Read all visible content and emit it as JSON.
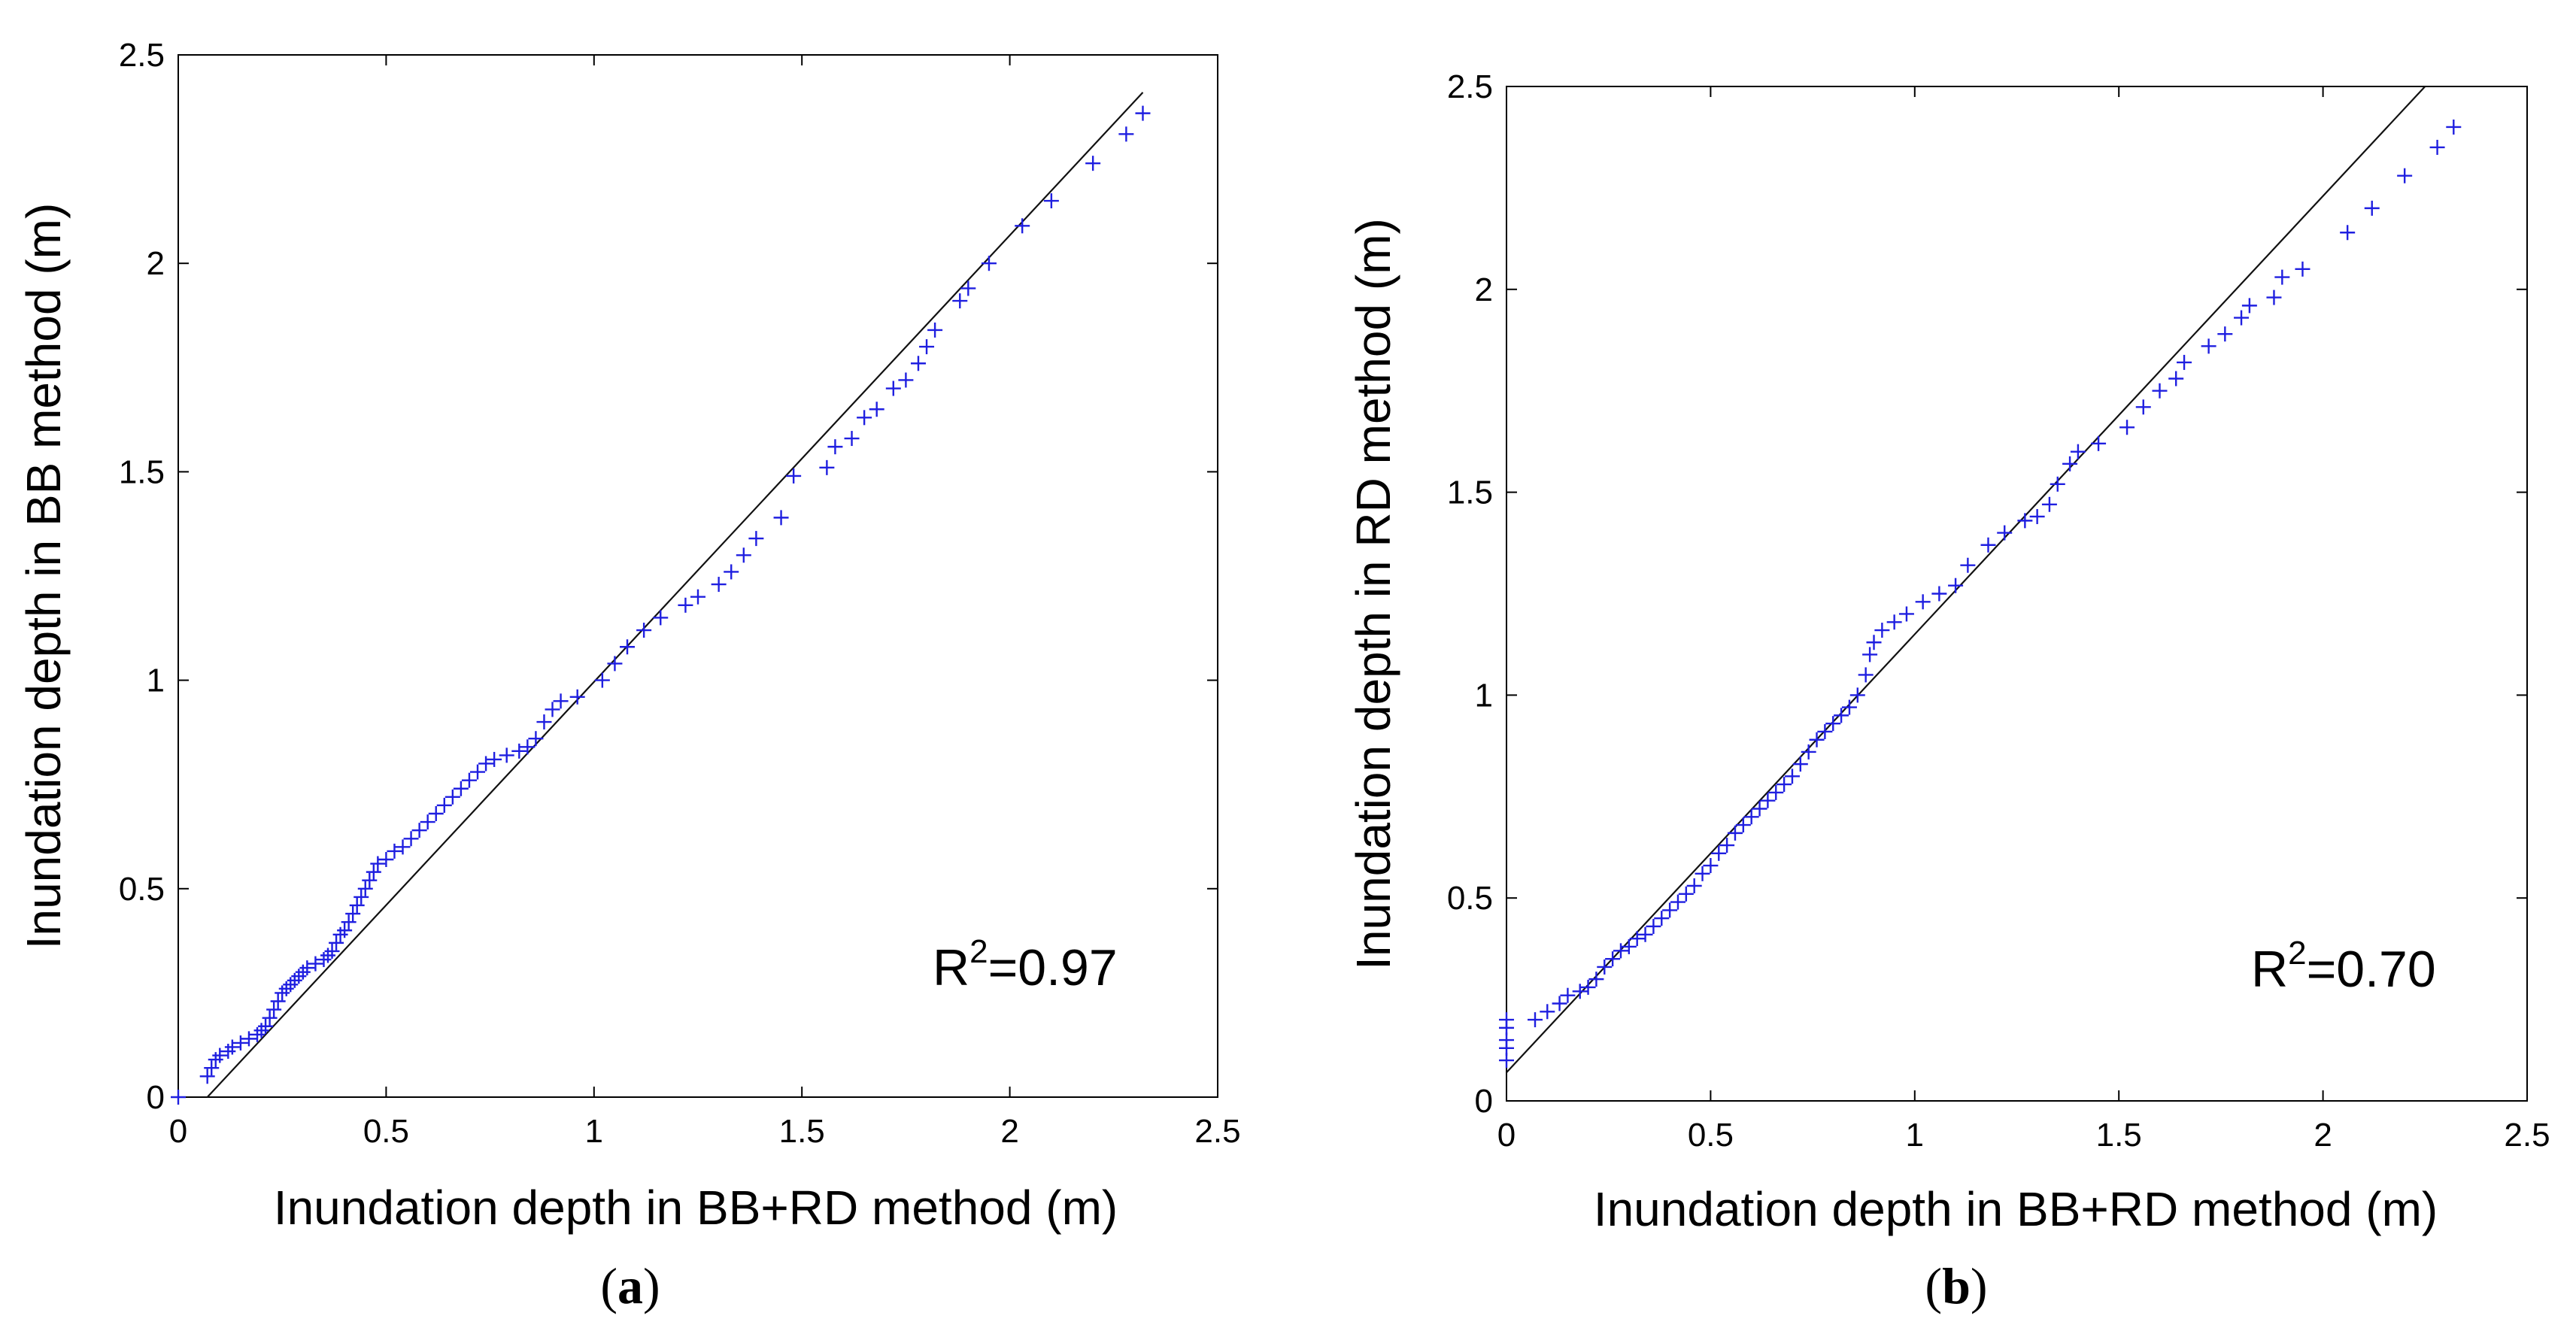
{
  "chart_data": [
    {
      "type": "scatter",
      "panel": "a",
      "caption": {
        "open": "(",
        "letter": "a",
        "close": ")"
      },
      "xlabel": "Inundation depth in BB+RD method (m)",
      "ylabel": "Inundation depth in BB method (m)",
      "xlim": [
        0,
        2.5
      ],
      "ylim": [
        0,
        2.5
      ],
      "xticks": [
        "0",
        "0.5",
        "1",
        "1.5",
        "2",
        "2.5"
      ],
      "yticks": [
        "0",
        "0.5",
        "1",
        "1.5",
        "2",
        "2.5"
      ],
      "annotation": {
        "prefix": "R",
        "sup": "2",
        "suffix": "=0.97"
      },
      "marker_color": "#1f1fe0",
      "fit_line": {
        "x": [
          0.07,
          2.32
        ],
        "y": [
          0.0,
          2.41
        ]
      },
      "points": [
        [
          0.0,
          0.0
        ],
        [
          0.07,
          0.05
        ],
        [
          0.08,
          0.07
        ],
        [
          0.09,
          0.09
        ],
        [
          0.1,
          0.1
        ],
        [
          0.12,
          0.11
        ],
        [
          0.13,
          0.12
        ],
        [
          0.15,
          0.13
        ],
        [
          0.17,
          0.14
        ],
        [
          0.19,
          0.15
        ],
        [
          0.2,
          0.16
        ],
        [
          0.21,
          0.17
        ],
        [
          0.22,
          0.19
        ],
        [
          0.23,
          0.21
        ],
        [
          0.24,
          0.23
        ],
        [
          0.25,
          0.25
        ],
        [
          0.26,
          0.26
        ],
        [
          0.27,
          0.27
        ],
        [
          0.28,
          0.28
        ],
        [
          0.29,
          0.29
        ],
        [
          0.3,
          0.3
        ],
        [
          0.31,
          0.31
        ],
        [
          0.33,
          0.32
        ],
        [
          0.35,
          0.33
        ],
        [
          0.36,
          0.34
        ],
        [
          0.37,
          0.35
        ],
        [
          0.38,
          0.37
        ],
        [
          0.39,
          0.39
        ],
        [
          0.4,
          0.4
        ],
        [
          0.41,
          0.42
        ],
        [
          0.42,
          0.44
        ],
        [
          0.43,
          0.46
        ],
        [
          0.44,
          0.48
        ],
        [
          0.45,
          0.5
        ],
        [
          0.46,
          0.52
        ],
        [
          0.47,
          0.54
        ],
        [
          0.48,
          0.56
        ],
        [
          0.5,
          0.57
        ],
        [
          0.52,
          0.59
        ],
        [
          0.54,
          0.6
        ],
        [
          0.56,
          0.62
        ],
        [
          0.58,
          0.64
        ],
        [
          0.6,
          0.66
        ],
        [
          0.62,
          0.68
        ],
        [
          0.64,
          0.7
        ],
        [
          0.66,
          0.72
        ],
        [
          0.68,
          0.74
        ],
        [
          0.7,
          0.76
        ],
        [
          0.72,
          0.78
        ],
        [
          0.74,
          0.8
        ],
        [
          0.76,
          0.81
        ],
        [
          0.79,
          0.82
        ],
        [
          0.82,
          0.83
        ],
        [
          0.84,
          0.84
        ],
        [
          0.86,
          0.86
        ],
        [
          0.88,
          0.9
        ],
        [
          0.9,
          0.93
        ],
        [
          0.92,
          0.95
        ],
        [
          0.96,
          0.96
        ],
        [
          1.02,
          1.0
        ],
        [
          1.05,
          1.04
        ],
        [
          1.08,
          1.08
        ],
        [
          1.12,
          1.12
        ],
        [
          1.16,
          1.15
        ],
        [
          1.22,
          1.18
        ],
        [
          1.25,
          1.2
        ],
        [
          1.3,
          1.23
        ],
        [
          1.33,
          1.26
        ],
        [
          1.36,
          1.3
        ],
        [
          1.39,
          1.34
        ],
        [
          1.45,
          1.39
        ],
        [
          1.48,
          1.49
        ],
        [
          1.56,
          1.51
        ],
        [
          1.58,
          1.56
        ],
        [
          1.62,
          1.58
        ],
        [
          1.65,
          1.63
        ],
        [
          1.68,
          1.65
        ],
        [
          1.72,
          1.7
        ],
        [
          1.75,
          1.72
        ],
        [
          1.78,
          1.76
        ],
        [
          1.8,
          1.8
        ],
        [
          1.82,
          1.84
        ],
        [
          1.88,
          1.91
        ],
        [
          1.9,
          1.94
        ],
        [
          1.95,
          2.0
        ],
        [
          2.03,
          2.09
        ],
        [
          2.1,
          2.15
        ],
        [
          2.2,
          2.24
        ],
        [
          2.28,
          2.31
        ],
        [
          2.32,
          2.36
        ]
      ]
    },
    {
      "type": "scatter",
      "panel": "b",
      "caption": {
        "open": "(",
        "letter": "b",
        "close": ")"
      },
      "xlabel": "Inundation depth in BB+RD method (m)",
      "ylabel": "Inundation depth in RD method (m)",
      "xlim": [
        0,
        2.5
      ],
      "ylim": [
        0,
        2.5
      ],
      "xticks": [
        "0",
        "0.5",
        "1",
        "1.5",
        "2",
        "2.5"
      ],
      "yticks": [
        "0",
        "0.5",
        "1",
        "1.5",
        "2",
        "2.5"
      ],
      "annotation": {
        "prefix": "R",
        "sup": "2",
        "suffix": "=0.70"
      },
      "marker_color": "#1f1fe0",
      "fit_line": {
        "x": [
          0.0,
          2.25
        ],
        "y": [
          0.07,
          2.5
        ]
      },
      "points": [
        [
          0.0,
          0.1
        ],
        [
          0.0,
          0.13
        ],
        [
          0.0,
          0.15
        ],
        [
          0.0,
          0.18
        ],
        [
          0.0,
          0.2
        ],
        [
          0.07,
          0.2
        ],
        [
          0.1,
          0.22
        ],
        [
          0.13,
          0.24
        ],
        [
          0.15,
          0.26
        ],
        [
          0.18,
          0.27
        ],
        [
          0.2,
          0.28
        ],
        [
          0.22,
          0.3
        ],
        [
          0.24,
          0.33
        ],
        [
          0.26,
          0.35
        ],
        [
          0.28,
          0.37
        ],
        [
          0.3,
          0.38
        ],
        [
          0.32,
          0.4
        ],
        [
          0.34,
          0.41
        ],
        [
          0.36,
          0.43
        ],
        [
          0.38,
          0.45
        ],
        [
          0.4,
          0.47
        ],
        [
          0.42,
          0.49
        ],
        [
          0.44,
          0.51
        ],
        [
          0.46,
          0.53
        ],
        [
          0.48,
          0.56
        ],
        [
          0.5,
          0.58
        ],
        [
          0.52,
          0.61
        ],
        [
          0.54,
          0.63
        ],
        [
          0.56,
          0.66
        ],
        [
          0.58,
          0.68
        ],
        [
          0.6,
          0.7
        ],
        [
          0.62,
          0.72
        ],
        [
          0.64,
          0.74
        ],
        [
          0.66,
          0.76
        ],
        [
          0.68,
          0.78
        ],
        [
          0.7,
          0.8
        ],
        [
          0.72,
          0.83
        ],
        [
          0.74,
          0.86
        ],
        [
          0.76,
          0.89
        ],
        [
          0.78,
          0.91
        ],
        [
          0.8,
          0.93
        ],
        [
          0.82,
          0.95
        ],
        [
          0.84,
          0.97
        ],
        [
          0.86,
          1.0
        ],
        [
          0.88,
          1.05
        ],
        [
          0.89,
          1.1
        ],
        [
          0.9,
          1.13
        ],
        [
          0.92,
          1.16
        ],
        [
          0.95,
          1.18
        ],
        [
          0.98,
          1.2
        ],
        [
          1.02,
          1.23
        ],
        [
          1.06,
          1.25
        ],
        [
          1.1,
          1.27
        ],
        [
          1.13,
          1.32
        ],
        [
          1.18,
          1.37
        ],
        [
          1.22,
          1.4
        ],
        [
          1.27,
          1.43
        ],
        [
          1.3,
          1.44
        ],
        [
          1.33,
          1.47
        ],
        [
          1.35,
          1.52
        ],
        [
          1.38,
          1.57
        ],
        [
          1.4,
          1.6
        ],
        [
          1.45,
          1.62
        ],
        [
          1.52,
          1.66
        ],
        [
          1.56,
          1.71
        ],
        [
          1.6,
          1.75
        ],
        [
          1.64,
          1.78
        ],
        [
          1.66,
          1.82
        ],
        [
          1.72,
          1.86
        ],
        [
          1.76,
          1.89
        ],
        [
          1.8,
          1.93
        ],
        [
          1.82,
          1.96
        ],
        [
          1.88,
          1.98
        ],
        [
          1.9,
          2.03
        ],
        [
          1.95,
          2.05
        ],
        [
          2.06,
          2.14
        ],
        [
          2.12,
          2.2
        ],
        [
          2.2,
          2.28
        ],
        [
          2.28,
          2.35
        ],
        [
          2.32,
          2.4
        ]
      ]
    }
  ]
}
